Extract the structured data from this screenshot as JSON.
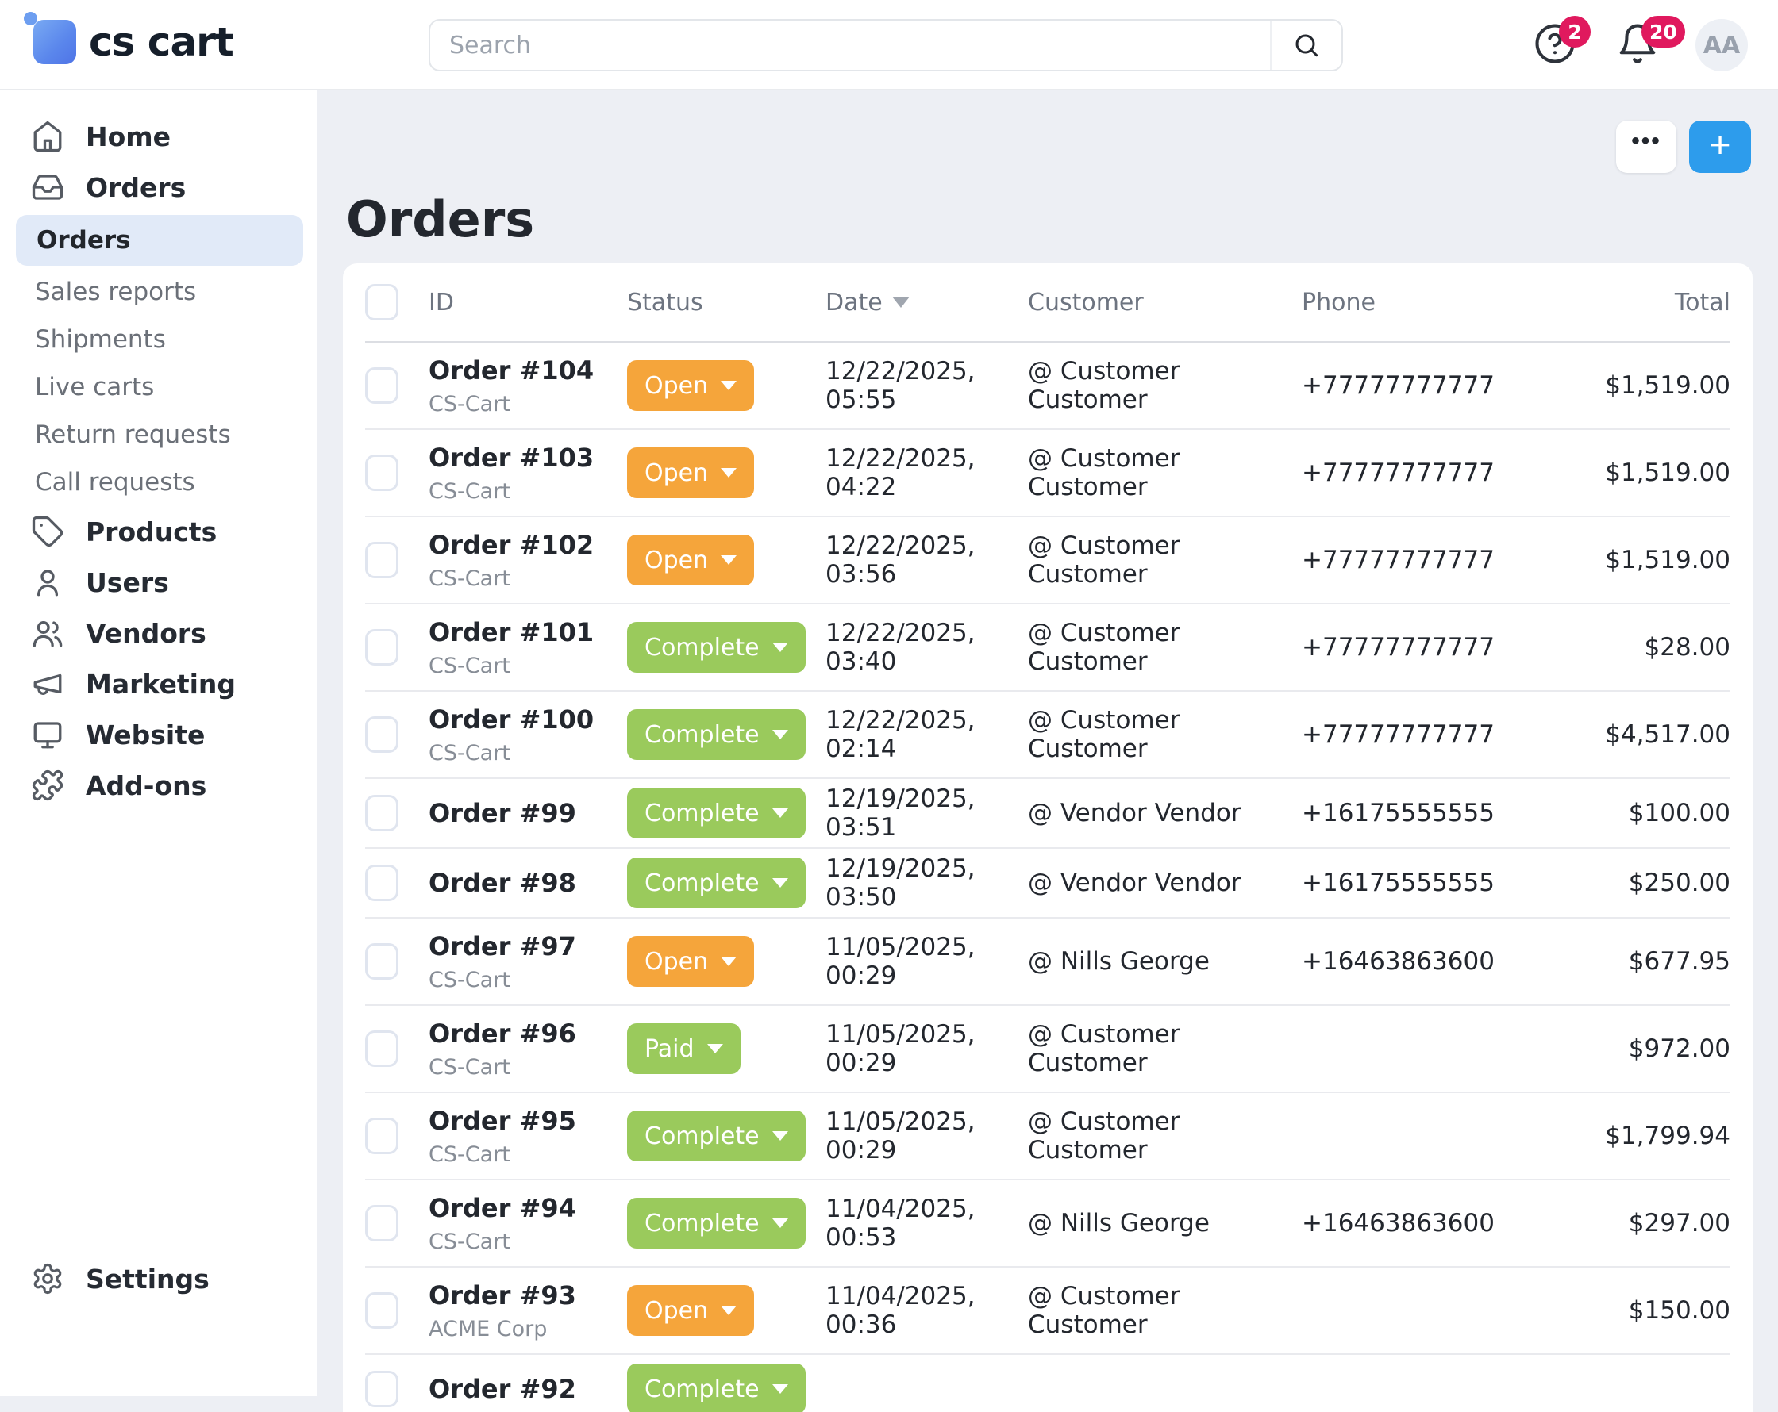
{
  "topbar": {
    "logo_text": "cs cart",
    "search": {
      "placeholder": "Search"
    },
    "help_badge": "2",
    "notifications_badge": "20",
    "avatar_initials": "AA"
  },
  "sidebar": {
    "items": [
      {
        "label": "Home",
        "icon": "home-icon",
        "level": "top"
      },
      {
        "label": "Orders",
        "icon": "inbox-icon",
        "level": "top"
      },
      {
        "label": "Orders",
        "level": "sub",
        "active": true
      },
      {
        "label": "Sales reports",
        "level": "sub"
      },
      {
        "label": "Shipments",
        "level": "sub"
      },
      {
        "label": "Live carts",
        "level": "sub"
      },
      {
        "label": "Return requests",
        "level": "sub"
      },
      {
        "label": "Call requests",
        "level": "sub"
      },
      {
        "label": "Products",
        "icon": "tag-icon",
        "level": "top"
      },
      {
        "label": "Users",
        "icon": "user-icon",
        "level": "top"
      },
      {
        "label": "Vendors",
        "icon": "users-icon",
        "level": "top"
      },
      {
        "label": "Marketing",
        "icon": "megaphone-icon",
        "level": "top"
      },
      {
        "label": "Website",
        "icon": "monitor-icon",
        "level": "top"
      },
      {
        "label": "Add-ons",
        "icon": "puzzle-icon",
        "level": "top"
      }
    ],
    "settings_label": "Settings"
  },
  "page": {
    "title": "Orders",
    "more_button": "•••",
    "add_button": "+"
  },
  "colors": {
    "accent_blue": "#2D9CEC",
    "badge_pink": "#E0195E",
    "status_open": "#F5A53B",
    "status_complete": "#9ACA5C",
    "status_paid": "#9ACA5C",
    "sidebar_active_bg": "#E1EAF8"
  },
  "table": {
    "columns": [
      "ID",
      "Status",
      "Date",
      "Customer",
      "Phone",
      "Total"
    ],
    "sorted_column": "Date",
    "rows": [
      {
        "id": "Order #104",
        "subtitle": "CS-Cart",
        "status": "Open",
        "status_key": "status_open",
        "date": "12/22/2025, 05:55",
        "customer": "@ Customer Customer",
        "phone": "+77777777777",
        "total": "$1,519.00"
      },
      {
        "id": "Order #103",
        "subtitle": "CS-Cart",
        "status": "Open",
        "status_key": "status_open",
        "date": "12/22/2025, 04:22",
        "customer": "@ Customer Customer",
        "phone": "+77777777777",
        "total": "$1,519.00"
      },
      {
        "id": "Order #102",
        "subtitle": "CS-Cart",
        "status": "Open",
        "status_key": "status_open",
        "date": "12/22/2025, 03:56",
        "customer": "@ Customer Customer",
        "phone": "+77777777777",
        "total": "$1,519.00"
      },
      {
        "id": "Order #101",
        "subtitle": "CS-Cart",
        "status": "Complete",
        "status_key": "status_complete",
        "date": "12/22/2025, 03:40",
        "customer": "@ Customer Customer",
        "phone": "+77777777777",
        "total": "$28.00"
      },
      {
        "id": "Order #100",
        "subtitle": "CS-Cart",
        "status": "Complete",
        "status_key": "status_complete",
        "date": "12/22/2025, 02:14",
        "customer": "@ Customer Customer",
        "phone": "+77777777777",
        "total": "$4,517.00"
      },
      {
        "id": "Order #99",
        "subtitle": "",
        "status": "Complete",
        "status_key": "status_complete",
        "date": "12/19/2025, 03:51",
        "customer": "@ Vendor Vendor",
        "phone": "+16175555555",
        "total": "$100.00"
      },
      {
        "id": "Order #98",
        "subtitle": "",
        "status": "Complete",
        "status_key": "status_complete",
        "date": "12/19/2025, 03:50",
        "customer": "@ Vendor Vendor",
        "phone": "+16175555555",
        "total": "$250.00"
      },
      {
        "id": "Order #97",
        "subtitle": "CS-Cart",
        "status": "Open",
        "status_key": "status_open",
        "date": "11/05/2025, 00:29",
        "customer": "@ Nills George",
        "phone": "+16463863600",
        "total": "$677.95"
      },
      {
        "id": "Order #96",
        "subtitle": "CS-Cart",
        "status": "Paid",
        "status_key": "status_paid",
        "date": "11/05/2025, 00:29",
        "customer": "@ Customer Customer",
        "phone": "",
        "total": "$972.00"
      },
      {
        "id": "Order #95",
        "subtitle": "CS-Cart",
        "status": "Complete",
        "status_key": "status_complete",
        "date": "11/05/2025, 00:29",
        "customer": "@ Customer Customer",
        "phone": "",
        "total": "$1,799.94"
      },
      {
        "id": "Order #94",
        "subtitle": "CS-Cart",
        "status": "Complete",
        "status_key": "status_complete",
        "date": "11/04/2025, 00:53",
        "customer": "@ Nills George",
        "phone": "+16463863600",
        "total": "$297.00"
      },
      {
        "id": "Order #93",
        "subtitle": "ACME Corp",
        "status": "Open",
        "status_key": "status_open",
        "date": "11/04/2025, 00:36",
        "customer": "@ Customer Customer",
        "phone": "",
        "total": "$150.00"
      },
      {
        "id": "Order #92",
        "subtitle": "",
        "status": "Complete",
        "status_key": "status_complete",
        "date": "",
        "customer": "",
        "phone": "",
        "total": ""
      }
    ]
  }
}
